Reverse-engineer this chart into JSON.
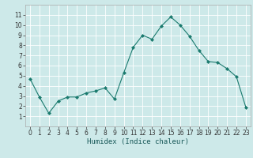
{
  "xlabel": "Humidex (Indice chaleur)",
  "x_values": [
    0,
    1,
    2,
    3,
    4,
    5,
    6,
    7,
    8,
    9,
    10,
    11,
    12,
    13,
    14,
    15,
    16,
    17,
    18,
    19,
    20,
    21,
    22,
    23
  ],
  "y_values": [
    4.7,
    2.9,
    1.3,
    2.5,
    2.9,
    2.9,
    3.3,
    3.5,
    3.8,
    2.7,
    5.3,
    7.8,
    9.0,
    8.6,
    9.9,
    10.8,
    10.0,
    8.9,
    7.5,
    6.4,
    6.3,
    5.7,
    4.9,
    1.9
  ],
  "line_color": "#1a7a6e",
  "marker": "D",
  "marker_size": 2.0,
  "background_color": "#cde9e9",
  "grid_color": "#ffffff",
  "ylim": [
    0,
    12
  ],
  "xlim": [
    -0.5,
    23.5
  ],
  "yticks": [
    1,
    2,
    3,
    4,
    5,
    6,
    7,
    8,
    9,
    10,
    11
  ],
  "xticks": [
    0,
    1,
    2,
    3,
    4,
    5,
    6,
    7,
    8,
    9,
    10,
    11,
    12,
    13,
    14,
    15,
    16,
    17,
    18,
    19,
    20,
    21,
    22,
    23
  ],
  "tick_fontsize": 5.5,
  "xlabel_fontsize": 6.5,
  "spine_color": "#aaaaaa"
}
